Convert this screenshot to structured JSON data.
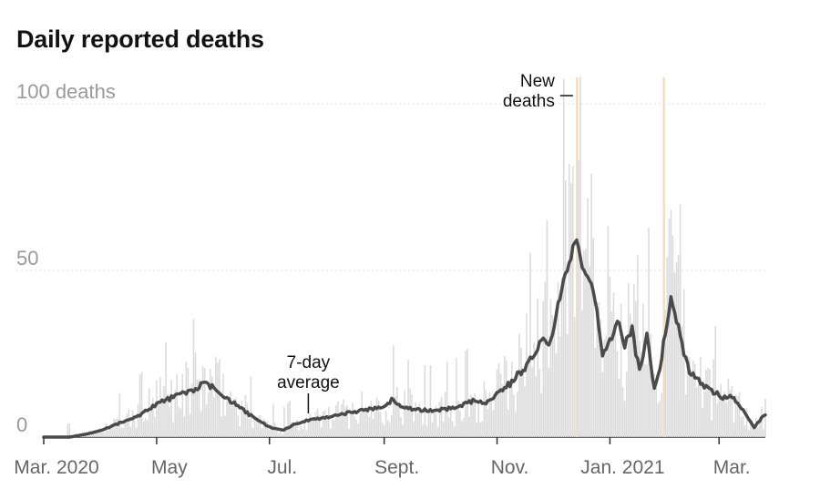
{
  "chart_data": {
    "type": "bar",
    "title": "Daily reported deaths",
    "y_ticks": [
      {
        "value": 0,
        "label": "0"
      },
      {
        "value": 50,
        "label": "50"
      },
      {
        "value": 100,
        "label": "100 deaths"
      }
    ],
    "ylim": [
      0,
      100
    ],
    "xlim": [
      "2020-03-01",
      "2021-03-26"
    ],
    "x_ticks": [
      {
        "date": "2020-03-01",
        "label": "Mar. 2020"
      },
      {
        "date": "2020-05-01",
        "label": "May"
      },
      {
        "date": "2020-07-01",
        "label": "Jul."
      },
      {
        "date": "2020-09-01",
        "label": "Sept."
      },
      {
        "date": "2020-11-01",
        "label": "Nov."
      },
      {
        "date": "2021-01-01",
        "label": "Jan. 2021"
      },
      {
        "date": "2021-03-01",
        "label": "Mar."
      }
    ],
    "grid": true,
    "colors": {
      "bars": "#dcdcdc",
      "highlight_bars": "#f3dfbf",
      "average_line": "#4a4a4a",
      "gridline": "#dddddd",
      "baseline": "#333333"
    },
    "series": [
      {
        "name": "7-day average",
        "type": "line",
        "points": [
          [
            "2020-03-01",
            0
          ],
          [
            "2020-03-15",
            0
          ],
          [
            "2020-03-25",
            1
          ],
          [
            "2020-04-01",
            2
          ],
          [
            "2020-04-10",
            4
          ],
          [
            "2020-04-20",
            6
          ],
          [
            "2020-05-01",
            10
          ],
          [
            "2020-05-10",
            12
          ],
          [
            "2020-05-20",
            14
          ],
          [
            "2020-05-27",
            16
          ],
          [
            "2020-06-03",
            14
          ],
          [
            "2020-06-12",
            10
          ],
          [
            "2020-06-22",
            6
          ],
          [
            "2020-07-01",
            3
          ],
          [
            "2020-07-08",
            2
          ],
          [
            "2020-07-15",
            4
          ],
          [
            "2020-07-22",
            5
          ],
          [
            "2020-08-01",
            6
          ],
          [
            "2020-08-10",
            7
          ],
          [
            "2020-08-20",
            8
          ],
          [
            "2020-08-30",
            9
          ],
          [
            "2020-09-05",
            11
          ],
          [
            "2020-09-12",
            9
          ],
          [
            "2020-09-20",
            8
          ],
          [
            "2020-09-30",
            8
          ],
          [
            "2020-10-10",
            9
          ],
          [
            "2020-10-20",
            11
          ],
          [
            "2020-10-25",
            10
          ],
          [
            "2020-11-01",
            13
          ],
          [
            "2020-11-10",
            17
          ],
          [
            "2020-11-20",
            24
          ],
          [
            "2020-11-25",
            30
          ],
          [
            "2020-11-29",
            27
          ],
          [
            "2020-12-03",
            36
          ],
          [
            "2020-12-06",
            45
          ],
          [
            "2020-12-10",
            53
          ],
          [
            "2020-12-14",
            60
          ],
          [
            "2020-12-17",
            52
          ],
          [
            "2020-12-21",
            48
          ],
          [
            "2020-12-24",
            42
          ],
          [
            "2020-12-28",
            24
          ],
          [
            "2021-01-01",
            28
          ],
          [
            "2021-01-05",
            35
          ],
          [
            "2021-01-09",
            28
          ],
          [
            "2021-01-13",
            32
          ],
          [
            "2021-01-17",
            20
          ],
          [
            "2021-01-21",
            31
          ],
          [
            "2021-01-25",
            14
          ],
          [
            "2021-01-29",
            24
          ],
          [
            "2021-02-03",
            42
          ],
          [
            "2021-02-08",
            30
          ],
          [
            "2021-02-13",
            20
          ],
          [
            "2021-02-19",
            16
          ],
          [
            "2021-02-25",
            14
          ],
          [
            "2021-03-03",
            12
          ],
          [
            "2021-03-09",
            12
          ],
          [
            "2021-03-14",
            8
          ],
          [
            "2021-03-20",
            3
          ],
          [
            "2021-03-26",
            7
          ]
        ]
      }
    ],
    "bars_label": "New deaths",
    "annotations": [
      {
        "lines": [
          "7-day",
          "average"
        ],
        "date": "2020-07-22",
        "value": 6
      },
      {
        "lines": [
          "New",
          "deaths"
        ],
        "date": "2020-12-14",
        "value": 102
      }
    ]
  }
}
